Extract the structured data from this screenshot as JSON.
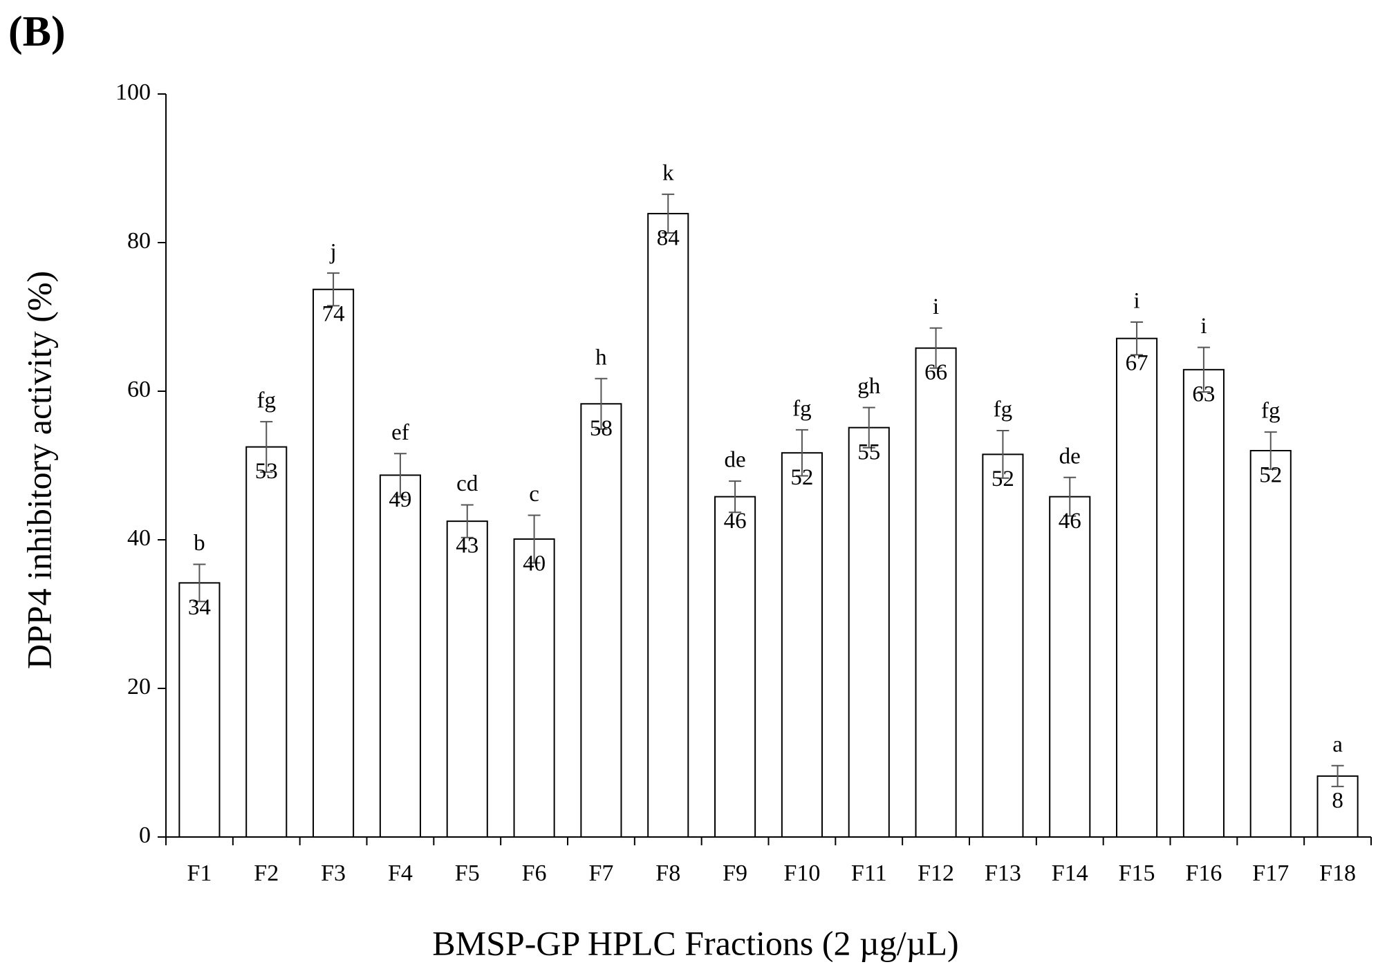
{
  "chart_data": {
    "type": "bar",
    "title": "(B)",
    "x_label": "BMSP-GP HPLC Fractions (2 µg/µL)",
    "y_label": "DPP4 inhibitory activity (%)",
    "categories": [
      "F1",
      "F2",
      "F3",
      "F4",
      "F5",
      "F6",
      "F7",
      "F8",
      "F9",
      "F10",
      "F11",
      "F12",
      "F13",
      "F14",
      "F15",
      "F16",
      "F17",
      "F18"
    ],
    "values": [
      34.2,
      52.5,
      73.7,
      48.7,
      42.5,
      40.1,
      58.3,
      83.9,
      45.8,
      51.7,
      55.1,
      65.8,
      51.5,
      45.8,
      67.1,
      62.9,
      52.0,
      8.2
    ],
    "value_labels": [
      "34",
      "53",
      "74",
      "49",
      "43",
      "40",
      "58",
      "84",
      "46",
      "52",
      "55",
      "66",
      "52",
      "46",
      "67",
      "63",
      "52",
      "8"
    ],
    "errors": [
      2.5,
      3.4,
      2.2,
      2.9,
      2.2,
      3.2,
      3.4,
      2.6,
      2.1,
      3.1,
      2.7,
      2.7,
      3.2,
      2.6,
      2.2,
      3.0,
      2.5,
      1.4
    ],
    "letters": [
      "b",
      "fg",
      "j",
      "ef",
      "cd",
      "c",
      "h",
      "k",
      "de",
      "fg",
      "gh",
      "i",
      "fg",
      "de",
      "i",
      "i",
      "fg",
      "a"
    ],
    "color": "#ffffff",
    "edge_color": "#000000",
    "error_color": "#555555",
    "ylim": [
      0,
      100
    ],
    "yticks": [
      0,
      20,
      40,
      60,
      80,
      100
    ],
    "grid": false
  }
}
